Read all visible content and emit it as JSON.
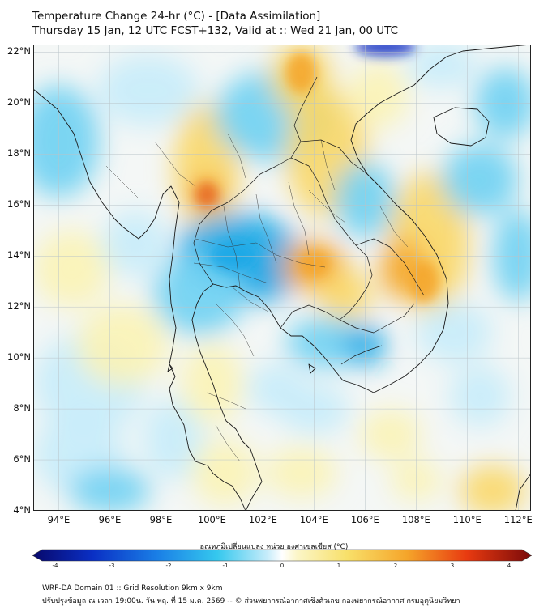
{
  "header": {
    "title_line1": "Temperature Change 24-hr (°C) - [Data Assimilation]",
    "title_line2": "Thursday 15 Jan, 12 UTC FCST+132, Valid at :: Wed 21 Jan, 00 UTC"
  },
  "map": {
    "lat_labels": [
      "22°N",
      "20°N",
      "18°N",
      "16°N",
      "14°N",
      "12°N",
      "10°N",
      "8°N",
      "6°N",
      "4°N"
    ],
    "lon_labels": [
      "94°E",
      "96°E",
      "98°E",
      "100°E",
      "102°E",
      "104°E",
      "106°E",
      "108°E",
      "110°E",
      "112°E"
    ],
    "lat_range": [
      4,
      22.3
    ],
    "lon_range": [
      93,
      112.5
    ],
    "colors": {
      "cool_strong": "#1aa7e6",
      "cool": "#6fd0f2",
      "cool_light": "#c6ecfa",
      "neutral": "#f4f7f6",
      "warm_light": "#fbf3b5",
      "warm": "#f9d766",
      "warm_strong": "#f5a52a",
      "hot": "#e8671c",
      "deep_blue": "#0a2fc4",
      "coast": "#1a1a1a"
    }
  },
  "colorbar": {
    "title": "อุณหภูมิเปลี่ยนแปลง หน่วย องศาเซลเซียส (°C)",
    "ticks": [
      "-4",
      "-3",
      "-2",
      "-1",
      "0",
      "1",
      "2",
      "3",
      "4"
    ]
  },
  "footer": {
    "line1": "WRF-DA Domain 01 :: Grid Resolution 9km x 9km",
    "line2": "ปรับปรุงข้อมูล ณ เวลา 19:00น. วัน พฤ. ที่ 15 ม.ค. 2569 -- © ส่วนพยากรณ์อากาศเชิงตัวเลข กองพยากรณ์อากาศ กรมอุตุนิยมวิทยา"
  }
}
